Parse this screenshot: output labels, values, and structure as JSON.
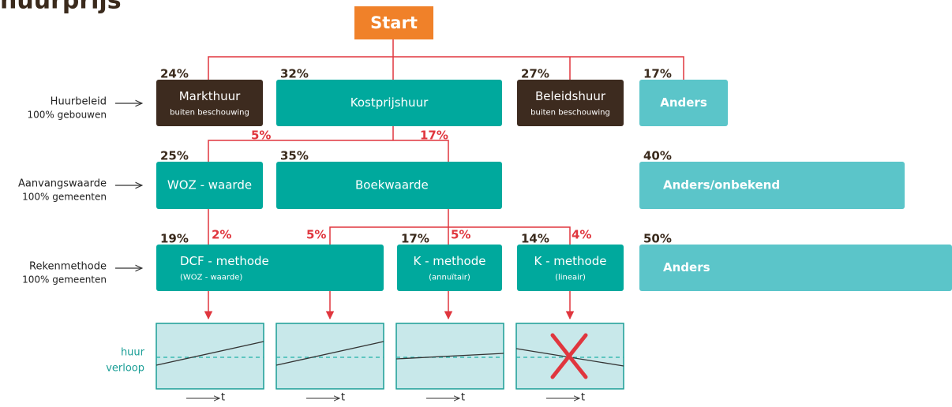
{
  "title": "huurprijs",
  "start": "Start",
  "rows": [
    {
      "label": "Huurbeleid",
      "sub": "100% gebouwen"
    },
    {
      "label": "Aanvangswaarde",
      "sub": "100% gemeenten"
    },
    {
      "label": "Rekenmethode",
      "sub": "100% gemeenten"
    }
  ],
  "nodes": [
    {
      "pct": "24%",
      "label": "Markthuur",
      "sub": "buiten beschouwing"
    },
    {
      "pct": "32%",
      "label": "Kostprijshuur"
    },
    {
      "pct": "27%",
      "label": "Beleidshuur",
      "sub": "buiten beschouwing"
    },
    {
      "pct": "17%",
      "label": "Anders"
    },
    {
      "pct": "25%",
      "label": "WOZ - waarde"
    },
    {
      "pct": "35%",
      "label": "Boekwaarde"
    },
    {
      "pct": "40%",
      "label": "Anders/onbekend"
    },
    {
      "pct": "19%",
      "label": "DCF - methode",
      "sub": "(WOZ - waarde)"
    },
    {
      "pct": "17%",
      "label": "K - methode",
      "sub": "(annuïtair)"
    },
    {
      "pct": "14%",
      "label": "K - methode",
      "sub": "(lineair)"
    },
    {
      "pct": "50%",
      "label": "Anders"
    }
  ],
  "edges": [
    "5%",
    "17%",
    "2%",
    "5%",
    "5%",
    "4%"
  ],
  "chart": {
    "ylabel": [
      "huur",
      "verloop"
    ],
    "xlabel": [
      "t",
      "t",
      "t",
      "t"
    ]
  }
}
